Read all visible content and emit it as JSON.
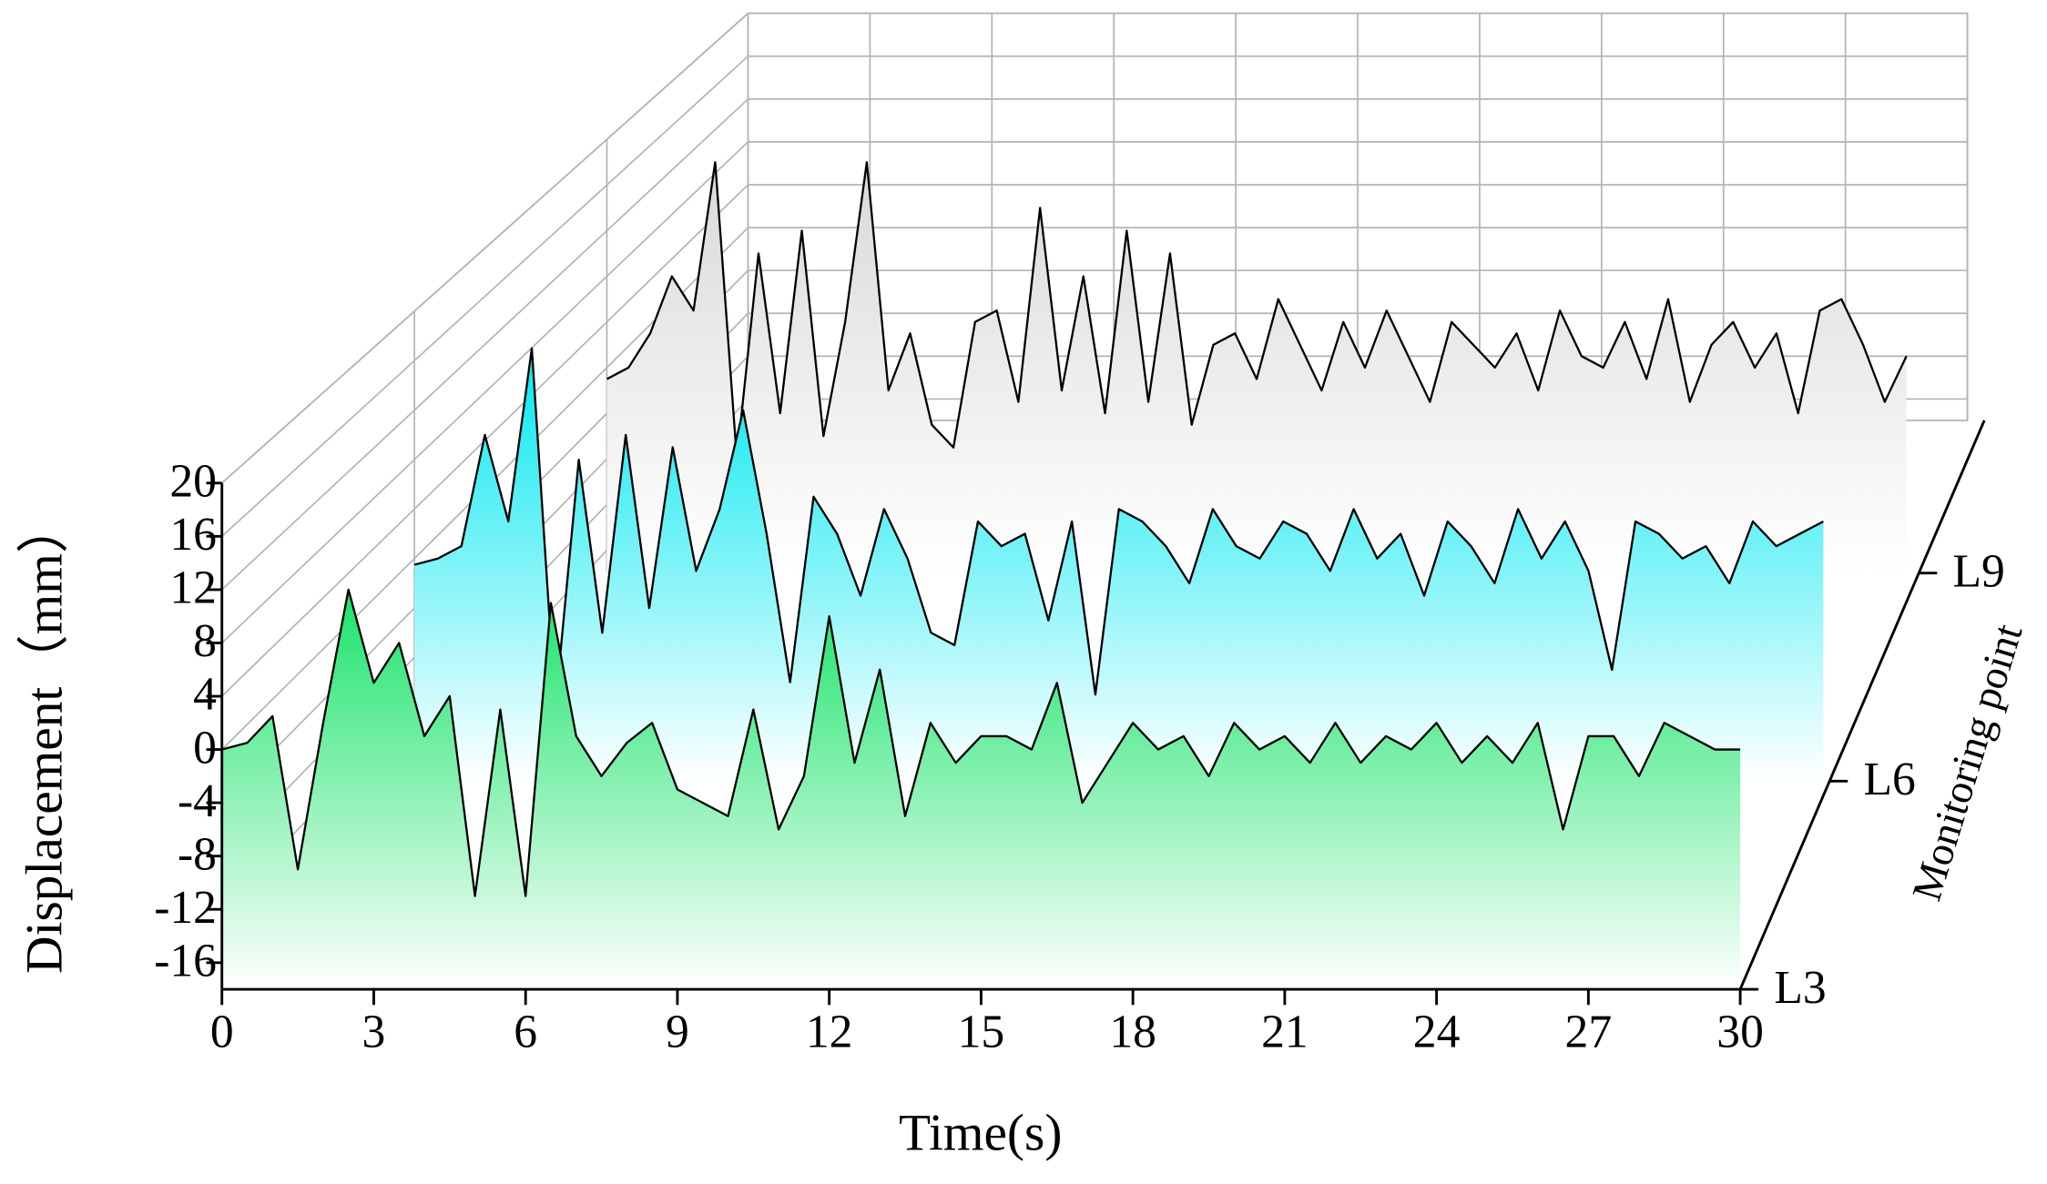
{
  "chart_data": {
    "type": "waterfall",
    "x_label": "Time(s)",
    "y_label": "Displacement（mm）",
    "z_label": "Monitoring point",
    "x": [
      0,
      0.5,
      1,
      1.5,
      2,
      2.5,
      3,
      3.5,
      4,
      4.5,
      5,
      5.5,
      6,
      6.5,
      7,
      7.5,
      8,
      8.5,
      9,
      9.5,
      10,
      10.5,
      11,
      11.5,
      12,
      12.5,
      13,
      13.5,
      14,
      14.5,
      15,
      15.5,
      16,
      16.5,
      17,
      17.5,
      18,
      18.5,
      19,
      19.5,
      20,
      20.5,
      21,
      21.5,
      22,
      22.5,
      23,
      23.5,
      24,
      24.5,
      25,
      25.5,
      26,
      26.5,
      27,
      27.5,
      28,
      28.5,
      29,
      29.5,
      30
    ],
    "xlim": [
      0,
      30
    ],
    "xticks": [
      0,
      3,
      6,
      9,
      12,
      15,
      18,
      21,
      24,
      27,
      30
    ],
    "ylim": [
      -18,
      20
    ],
    "yticks": [
      -16,
      -12,
      -8,
      -4,
      0,
      4,
      8,
      12,
      16,
      20
    ],
    "zlim": [
      3,
      11.2
    ],
    "zticks": [
      {
        "value": 3,
        "label": "L3"
      },
      {
        "value": 6,
        "label": "L6"
      },
      {
        "value": 9,
        "label": "L9"
      }
    ],
    "grid": true,
    "series": [
      {
        "z": 3,
        "color": "#19e36a",
        "values": [
          0,
          0.5,
          2.5,
          -9,
          2,
          12,
          5,
          8,
          1,
          4,
          -11,
          3,
          -11,
          11,
          1,
          -2,
          0.5,
          2,
          -3,
          -4,
          -5,
          3,
          -6,
          -2,
          10,
          -1,
          6,
          -5,
          2,
          -1,
          1,
          1,
          0,
          5,
          -4,
          -1,
          2,
          0,
          1,
          -2,
          2,
          0,
          1,
          -1,
          2,
          -1,
          1,
          0,
          2,
          -1,
          1,
          -1,
          2,
          -6,
          1,
          1,
          -2,
          2,
          1,
          0,
          0
        ]
      },
      {
        "z": 6,
        "color": "#00e8f0",
        "values": [
          -0.5,
          0,
          1,
          10,
          3,
          17,
          -12,
          8,
          -6,
          10,
          -4,
          9,
          -1,
          4,
          12,
          2,
          -10,
          5,
          2,
          -3,
          4,
          0,
          -6,
          -7,
          3,
          1,
          2,
          -5,
          3,
          -11,
          4,
          3,
          1,
          -2,
          4,
          1,
          0,
          3,
          2,
          -1,
          4,
          0,
          2,
          -3,
          3,
          1,
          -2,
          4,
          0,
          3,
          -1,
          -9,
          3,
          2,
          0,
          1,
          -2,
          3,
          1,
          2,
          3
        ]
      },
      {
        "z": 9,
        "color": "#d9d9d9",
        "values": [
          -1,
          0,
          3,
          8,
          5,
          18,
          -8,
          10,
          -4,
          12,
          -6,
          4,
          18,
          -2,
          3,
          -5,
          -7,
          4,
          5,
          -3,
          14,
          -2,
          8,
          -4,
          12,
          -3,
          10,
          -5,
          2,
          3,
          -1,
          6,
          2,
          -2,
          4,
          0,
          5,
          1,
          -3,
          4,
          2,
          0,
          3,
          -2,
          5,
          1,
          0,
          4,
          -1,
          6,
          -3,
          2,
          4,
          0,
          3,
          -4,
          5,
          6,
          2,
          -3,
          1
        ]
      }
    ]
  }
}
